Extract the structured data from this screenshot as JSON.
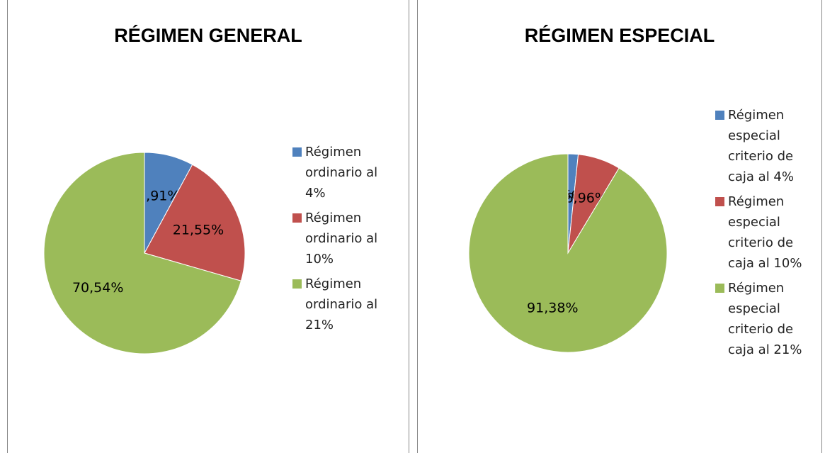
{
  "chart_data": [
    {
      "type": "pie",
      "title": "RÉGIMEN GENERAL",
      "categories": [
        "Régimen ordinario al 4%",
        "Régimen ordinario al 10%",
        "Régimen ordinario al 21%"
      ],
      "values": [
        7.91,
        21.55,
        70.54
      ],
      "value_labels": [
        "7,91%",
        "21,55%",
        "70,54%"
      ],
      "colors": [
        "#4f81bd",
        "#c0504d",
        "#9bbb59"
      ],
      "legend": "right"
    },
    {
      "type": "pie",
      "title": "RÉGIMEN ESPECIAL",
      "categories": [
        "Régimen especial criterio de caja al 4%",
        "Régimen especial criterio de caja al 10%",
        "Régimen especial criterio de caja al 21%"
      ],
      "values": [
        1.66,
        6.96,
        91.38
      ],
      "value_labels": [
        "1,66%",
        "6,96%",
        "91,38%"
      ],
      "colors": [
        "#4f81bd",
        "#c0504d",
        "#9bbb59"
      ],
      "legend": "right"
    }
  ]
}
